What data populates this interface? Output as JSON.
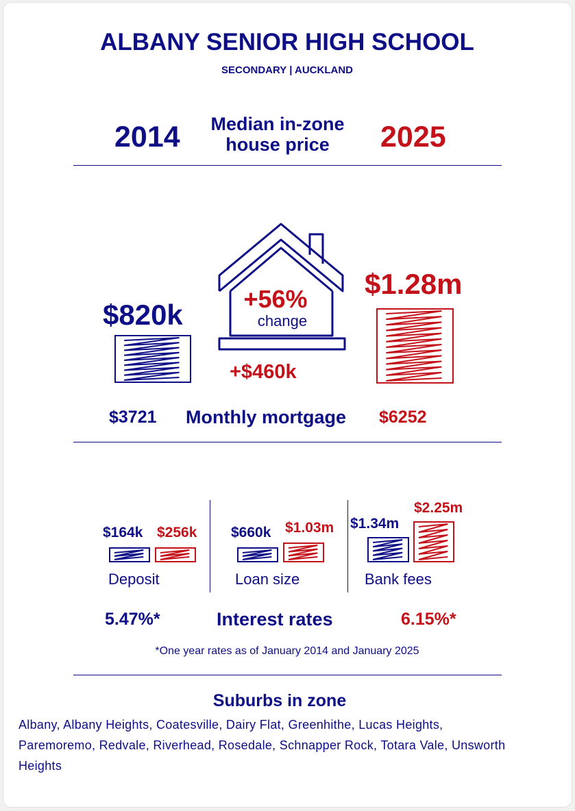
{
  "header": {
    "title": "ALBANY SENIOR HIGH SCHOOL",
    "subtitle": "SECONDARY | AUCKLAND"
  },
  "price": {
    "year_from": "2014",
    "label": "Median in-zone house price",
    "year_to": "2025",
    "value_from": "$820k",
    "value_to": "$1.28m",
    "change_pct": "+56%",
    "change_label": "change",
    "change_amount": "+$460k"
  },
  "mortgage": {
    "from": "$3721",
    "label": "Monthly mortgage",
    "to": "$6252"
  },
  "costs": [
    {
      "label": "Deposit",
      "from": "$164k",
      "to": "$256k"
    },
    {
      "label": "Loan size",
      "from": "$660k",
      "to": "$1.03m"
    },
    {
      "label": "Bank fees",
      "from": "$1.34m",
      "to": "$2.25m"
    }
  ],
  "rates": {
    "from": "5.47%*",
    "label": "Interest rates",
    "to": "6.15%*",
    "note": "*One year rates as of January 2014 and January 2025"
  },
  "suburbs": {
    "title": "Suburbs in zone",
    "list": "Albany, Albany Heights, Coatesville, Dairy Flat, Greenhithe, Lucas Heights, Paremoremo, Redvale, Riverhead, Rosedale, Schnapper Rock, Totara Vale, Unsworth Heights"
  }
}
